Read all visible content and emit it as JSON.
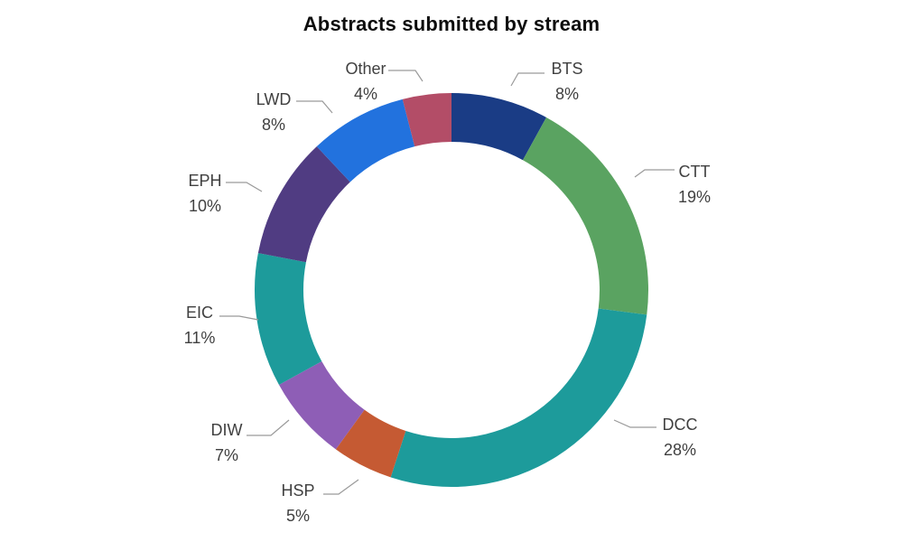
{
  "title": "Abstracts submitted by stream",
  "chart_data": {
    "type": "pie",
    "variant": "donut",
    "title": "Abstracts submitted by stream",
    "categories": [
      "BTS",
      "CTT",
      "DCC",
      "HSP",
      "DIW",
      "EIC",
      "EPH",
      "LWD",
      "Other"
    ],
    "values": [
      8,
      19,
      28,
      5,
      7,
      11,
      10,
      8,
      4
    ],
    "unit": "%",
    "data_labels": [
      "BTS 8%",
      "CTT 19%",
      "DCC 28%",
      "HSP 5%",
      "DIW 7%",
      "EIC 11%",
      "EPH 10%",
      "LWD 8%",
      "Other 4%"
    ],
    "colors": [
      "#1A3C85",
      "#5AA361",
      "#1D9B9B",
      "#C55A33",
      "#8E5EB6",
      "#1D9B9B",
      "#503C82",
      "#2272DE",
      "#B34D67"
    ],
    "start_angle_deg": 0,
    "direction": "clockwise",
    "legend_position": "none",
    "grid": false,
    "background_color": "#ffffff",
    "label_text_color": "#404040",
    "leader_line_color": "#9a9a9a",
    "title_color": "#0d0d0d"
  }
}
